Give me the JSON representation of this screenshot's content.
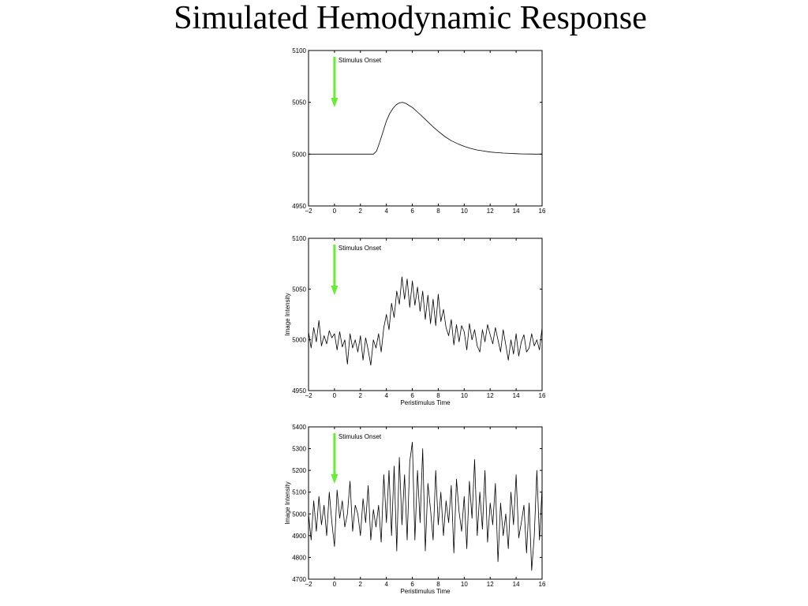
{
  "title": "Simulated Hemodynamic Response",
  "colors": {
    "arrow": "#66ee33",
    "line": "#000000"
  },
  "chart_data": [
    {
      "type": "line",
      "title": "",
      "xlabel": "",
      "ylabel": "",
      "xlim": [
        -2,
        16
      ],
      "ylim": [
        4950,
        5100
      ],
      "xticks": [
        -2,
        0,
        2,
        4,
        6,
        8,
        10,
        12,
        14,
        16
      ],
      "yticks": [
        4950,
        5000,
        5050,
        5100
      ],
      "xtick_labels": [
        "−2",
        "0",
        "2",
        "4",
        "6",
        "8",
        "10",
        "12",
        "14",
        "16"
      ],
      "ytick_labels": [
        "4950",
        "5000",
        "5050",
        "5100"
      ],
      "annotation": {
        "text": "Stimulus Onset",
        "x": 0
      },
      "series": [
        {
          "x": [
            -2,
            -1,
            0,
            1,
            2,
            3,
            3.25,
            3.5,
            3.75,
            4,
            4.25,
            4.5,
            4.75,
            5,
            5.25,
            5.5,
            5.75,
            6,
            6.5,
            7,
            7.5,
            8,
            8.5,
            9,
            9.5,
            10,
            10.5,
            11,
            11.5,
            12,
            12.5,
            13,
            13.5,
            14,
            14.5,
            15,
            15.5,
            16
          ],
          "values": [
            5000,
            5000,
            5000,
            5000,
            5000,
            5000,
            5003,
            5012,
            5022,
            5032,
            5039,
            5044,
            5047.5,
            5049.5,
            5050,
            5049,
            5047,
            5045,
            5039.5,
            5033.5,
            5027.5,
            5022,
            5017,
            5013,
            5010,
            5007.5,
            5005.5,
            5004,
            5003,
            5002,
            5001.5,
            5001,
            5000.7,
            5000.4,
            5000.2,
            5000.1,
            5000,
            5000
          ]
        }
      ]
    },
    {
      "type": "line",
      "title": "",
      "xlabel": "Peristimulus Time",
      "ylabel": "Image Intensity",
      "xlim": [
        -2,
        16
      ],
      "ylim": [
        4950,
        5100
      ],
      "xticks": [
        -2,
        0,
        2,
        4,
        6,
        8,
        10,
        12,
        14,
        16
      ],
      "yticks": [
        4950,
        5000,
        5050,
        5100
      ],
      "xtick_labels": [
        "−2",
        "0",
        "2",
        "4",
        "6",
        "8",
        "10",
        "12",
        "14",
        "16"
      ],
      "ytick_labels": [
        "4950",
        "5000",
        "5050",
        "5100"
      ],
      "annotation": {
        "text": "Stimulus Onset",
        "x": 0
      },
      "series": [
        {
          "x": [
            -2,
            -1.8,
            -1.6,
            -1.4,
            -1.2,
            -1,
            -0.8,
            -0.6,
            -0.4,
            -0.2,
            0,
            0.2,
            0.4,
            0.6,
            0.8,
            1,
            1.2,
            1.4,
            1.6,
            1.8,
            2,
            2.2,
            2.4,
            2.6,
            2.8,
            3,
            3.2,
            3.4,
            3.6,
            3.8,
            4,
            4.2,
            4.4,
            4.6,
            4.8,
            5,
            5.2,
            5.4,
            5.6,
            5.8,
            6,
            6.2,
            6.4,
            6.6,
            6.8,
            7,
            7.2,
            7.4,
            7.6,
            7.8,
            8,
            8.2,
            8.4,
            8.6,
            8.8,
            9,
            9.2,
            9.4,
            9.6,
            9.8,
            10,
            10.2,
            10.4,
            10.6,
            10.8,
            11,
            11.2,
            11.4,
            11.6,
            11.8,
            12,
            12.2,
            12.4,
            12.6,
            12.8,
            13,
            13.2,
            13.4,
            13.6,
            13.8,
            14,
            14.2,
            14.4,
            14.6,
            14.8,
            15,
            15.2,
            15.4,
            15.6,
            15.8,
            16
          ],
          "values": [
            5008,
            4992,
            5012,
            4998,
            5019,
            4994,
            5004,
            4996,
            5009,
            5002,
            5006,
            4990,
            5008,
            4993,
            5000,
            4976,
            5006,
            4992,
            5000,
            4988,
            5004,
            4980,
            5002,
            4990,
            4975,
            5000,
            4992,
            5006,
            4988,
            5012,
            5025,
            5010,
            5036,
            5022,
            5048,
            5035,
            5062,
            5040,
            5060,
            5032,
            5058,
            5034,
            5052,
            5028,
            5048,
            5020,
            5044,
            5016,
            5040,
            5014,
            5045,
            5018,
            5030,
            5012,
            5004,
            5020,
            4995,
            5015,
            4998,
            5014,
            5008,
            4990,
            5016,
            5000,
            5010,
            4994,
            4988,
            5010,
            4998,
            5015,
            5005,
            4996,
            5012,
            5000,
            4988,
            5010,
            4995,
            4980,
            5000,
            4986,
            5006,
            4984,
            4998,
            5005,
            4988,
            4992,
            5006,
            4994,
            5000,
            4990,
            5012
          ]
        }
      ]
    },
    {
      "type": "line",
      "title": "",
      "xlabel": "Peristimulus Time",
      "ylabel": "Image Intensity",
      "xlim": [
        -2,
        16
      ],
      "ylim": [
        4700,
        5400
      ],
      "xticks": [
        -2,
        0,
        2,
        4,
        6,
        8,
        10,
        12,
        14,
        16
      ],
      "yticks": [
        4700,
        4800,
        4900,
        5000,
        5100,
        5200,
        5300,
        5400
      ],
      "xtick_labels": [
        "−2",
        "0",
        "2",
        "4",
        "6",
        "8",
        "10",
        "12",
        "14",
        "16"
      ],
      "ytick_labels": [
        "4700",
        "4800",
        "4900",
        "5000",
        "5100",
        "5200",
        "5300",
        "5400"
      ],
      "annotation": {
        "text": "Stimulus Onset",
        "x": 0
      },
      "series": [
        {
          "x": [
            -2,
            -1.8,
            -1.6,
            -1.4,
            -1.2,
            -1,
            -0.8,
            -0.6,
            -0.4,
            -0.2,
            0,
            0.2,
            0.4,
            0.6,
            0.8,
            1,
            1.2,
            1.4,
            1.6,
            1.8,
            2,
            2.2,
            2.4,
            2.6,
            2.8,
            3,
            3.2,
            3.4,
            3.6,
            3.8,
            4,
            4.2,
            4.4,
            4.6,
            4.8,
            5,
            5.2,
            5.4,
            5.6,
            5.8,
            6,
            6.2,
            6.4,
            6.6,
            6.8,
            7,
            7.2,
            7.4,
            7.6,
            7.8,
            8,
            8.2,
            8.4,
            8.6,
            8.8,
            9,
            9.2,
            9.4,
            9.6,
            9.8,
            10,
            10.2,
            10.4,
            10.6,
            10.8,
            11,
            11.2,
            11.4,
            11.6,
            11.8,
            12,
            12.2,
            12.4,
            12.6,
            12.8,
            13,
            13.2,
            13.4,
            13.6,
            13.8,
            14,
            14.2,
            14.4,
            14.6,
            14.8,
            15,
            15.2,
            15.4,
            15.6,
            15.8,
            16
          ],
          "values": [
            5000,
            4880,
            5060,
            4920,
            5080,
            4950,
            5040,
            4900,
            5100,
            4960,
            4850,
            5110,
            4980,
            5060,
            4940,
            5000,
            5150,
            4920,
            5040,
            5000,
            4900,
            5070,
            4960,
            5130,
            4880,
            5020,
            4940,
            5040,
            4870,
            5180,
            4960,
            5200,
            4900,
            5220,
            4830,
            5260,
            4950,
            5180,
            4880,
            5240,
            5330,
            4880,
            5200,
            4960,
            5300,
            4830,
            5140,
            5020,
            4880,
            5200,
            4950,
            5100,
            4900,
            5060,
            4960,
            5130,
            4820,
            5160,
            5010,
            4920,
            5080,
            4840,
            5150,
            4980,
            5250,
            4900,
            5100,
            4930,
            5200,
            4870,
            5050,
            4950,
            5140,
            4780,
            5050,
            4900,
            5000,
            4840,
            5100,
            4950,
            5180,
            4890,
            4960,
            5040,
            4820,
            5050,
            4740,
            4900,
            5200,
            4880,
            5120
          ]
        }
      ]
    }
  ]
}
